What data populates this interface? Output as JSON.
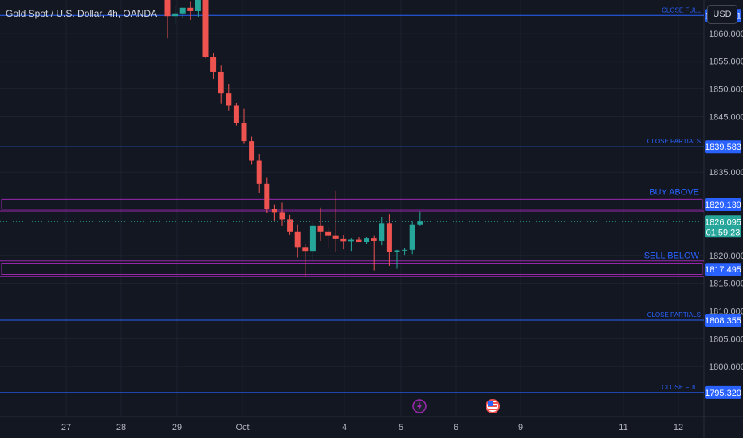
{
  "header": {
    "symbol": "Gold Spot / U.S. Dollar, 4h, OANDA",
    "currency": "USD"
  },
  "chart_data": {
    "type": "candlestick",
    "ylim": [
      1791.0,
      1866.0
    ],
    "y_ticks": [
      "1860.000",
      "1855.000",
      "1850.000",
      "1845.000",
      "1835.000",
      "1820.000",
      "1815.000",
      "1810.000",
      "1805.000",
      "1800.000"
    ],
    "x_ticks": [
      "27",
      "28",
      "29",
      "Oct",
      "4",
      "5",
      "6",
      "9",
      "11",
      "12"
    ],
    "candles": [
      {
        "o": 1868,
        "h": 1880,
        "l": 1859.1,
        "c": 1863.1
      },
      {
        "o": 1863.1,
        "h": 1865,
        "l": 1861.6,
        "c": 1863.6
      },
      {
        "o": 1863.6,
        "h": 1864.6,
        "l": 1862.7,
        "c": 1864.6
      },
      {
        "o": 1864.6,
        "h": 1865.8,
        "l": 1862.4,
        "c": 1864.0
      },
      {
        "o": 1864.0,
        "h": 1870,
        "l": 1863.0,
        "c": 1867.0
      },
      {
        "o": 1867.0,
        "h": 1880,
        "l": 1855.5,
        "c": 1855.8
      },
      {
        "o": 1855.8,
        "h": 1856.4,
        "l": 1851.8,
        "c": 1853.1
      },
      {
        "o": 1853.1,
        "h": 1854.2,
        "l": 1847.4,
        "c": 1849.2
      },
      {
        "o": 1849.2,
        "h": 1850.9,
        "l": 1846.1,
        "c": 1847.0
      },
      {
        "o": 1847.0,
        "h": 1847.5,
        "l": 1843.4,
        "c": 1843.9
      },
      {
        "o": 1843.9,
        "h": 1846.4,
        "l": 1840.1,
        "c": 1840.6
      },
      {
        "o": 1840.6,
        "h": 1841.4,
        "l": 1836.4,
        "c": 1837.1
      },
      {
        "o": 1837.1,
        "h": 1838.2,
        "l": 1831.3,
        "c": 1832.9
      },
      {
        "o": 1832.9,
        "h": 1834.1,
        "l": 1827.6,
        "c": 1828.4
      },
      {
        "o": 1828.4,
        "h": 1829.2,
        "l": 1826.3,
        "c": 1827.8
      },
      {
        "o": 1827.8,
        "h": 1829.5,
        "l": 1825.3,
        "c": 1826.5
      },
      {
        "o": 1826.5,
        "h": 1827.3,
        "l": 1823.7,
        "c": 1824.3
      },
      {
        "o": 1824.3,
        "h": 1825.6,
        "l": 1819.6,
        "c": 1821.5
      },
      {
        "o": 1821.5,
        "h": 1822.1,
        "l": 1816.1,
        "c": 1820.8
      },
      {
        "o": 1820.8,
        "h": 1826.2,
        "l": 1818.9,
        "c": 1825.3
      },
      {
        "o": 1825.3,
        "h": 1828.6,
        "l": 1822.7,
        "c": 1824.3
      },
      {
        "o": 1824.3,
        "h": 1825.1,
        "l": 1821.3,
        "c": 1823.6
      },
      {
        "o": 1823.6,
        "h": 1831.6,
        "l": 1820.7,
        "c": 1823.0
      },
      {
        "o": 1823.0,
        "h": 1823.7,
        "l": 1821.1,
        "c": 1822.5
      },
      {
        "o": 1822.5,
        "h": 1823.1,
        "l": 1820.8,
        "c": 1822.9
      },
      {
        "o": 1822.9,
        "h": 1823.4,
        "l": 1822.4,
        "c": 1822.4
      },
      {
        "o": 1822.4,
        "h": 1823.3,
        "l": 1822.1,
        "c": 1823.1
      },
      {
        "o": 1823.1,
        "h": 1823.6,
        "l": 1817.3,
        "c": 1822.7
      },
      {
        "o": 1822.7,
        "h": 1826.9,
        "l": 1821.8,
        "c": 1825.8
      },
      {
        "o": 1825.8,
        "h": 1827.4,
        "l": 1818.1,
        "c": 1820.6
      },
      {
        "o": 1820.6,
        "h": 1821.0,
        "l": 1817.6,
        "c": 1820.9
      },
      {
        "o": 1820.9,
        "h": 1821.4,
        "l": 1820.1,
        "c": 1821.0
      },
      {
        "o": 1821.0,
        "h": 1826.1,
        "l": 1820.2,
        "c": 1825.6
      },
      {
        "o": 1825.6,
        "h": 1827.9,
        "l": 1825.3,
        "c": 1826.1
      }
    ],
    "horizontal_lines": [
      {
        "label": "CLOSE FULL",
        "value": 1863.231,
        "value_label": "1863.231"
      },
      {
        "label": "CLOSE PARTIALS",
        "value": 1839.583,
        "value_label": "1839.583"
      },
      {
        "label": "CLOSE PARTIALS",
        "value": 1808.355,
        "value_label": "1808.355"
      },
      {
        "label": "CLOSE FULL",
        "value": 1795.32,
        "value_label": "1795.320"
      }
    ],
    "zones": [
      {
        "label": "BUY ABOVE",
        "top": 1830.1,
        "bottom": 1828.3,
        "outer_top": 1830.5,
        "outer_bottom": 1828.0,
        "value": 1829.139,
        "value_label": "1829.139"
      },
      {
        "label": "SELL BELOW",
        "top": 1818.6,
        "bottom": 1816.6,
        "outer_top": 1819.0,
        "outer_bottom": 1816.2,
        "value": 1817.495,
        "value_label": "1817.495"
      }
    ],
    "last_price": {
      "value": 1826.095,
      "label": "1826.095",
      "countdown": "01:59:23"
    },
    "events": [
      "lightning-icon",
      "us-flag-icon"
    ],
    "colors": {
      "up": "#26a69a",
      "down": "#ef5350",
      "line": "#2962ff",
      "zone": "#9c27b0",
      "background": "#131722"
    }
  }
}
